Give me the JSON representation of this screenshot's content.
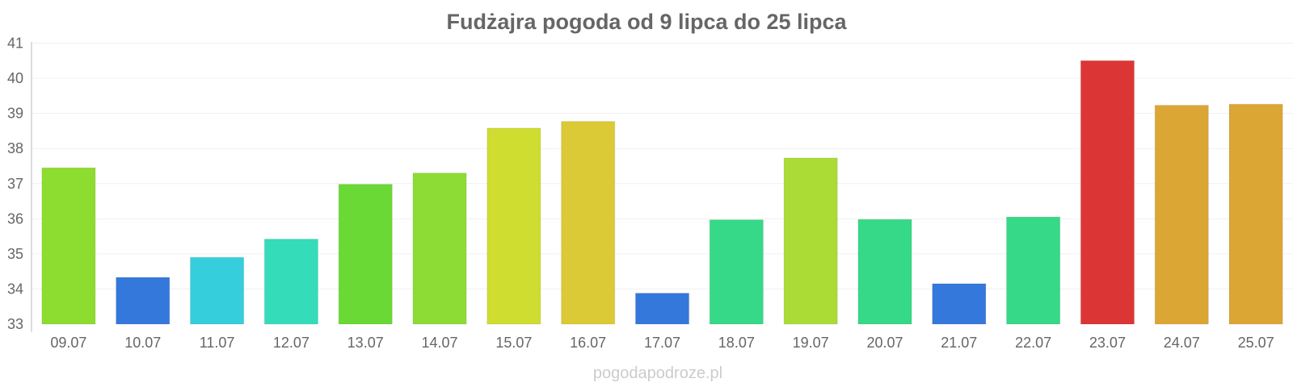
{
  "chart_data": {
    "type": "bar",
    "title": "Fudżajra pogoda od 9 lipca do 25 lipca",
    "xlabel": "",
    "ylabel": "",
    "ylim": [
      33,
      41
    ],
    "yticks": [
      33,
      34,
      35,
      36,
      37,
      38,
      39,
      40,
      41
    ],
    "grid": true,
    "categories": [
      "09.07",
      "10.07",
      "11.07",
      "12.07",
      "13.07",
      "14.07",
      "15.07",
      "16.07",
      "17.07",
      "18.07",
      "19.07",
      "20.07",
      "21.07",
      "22.07",
      "23.07",
      "24.07",
      "25.07"
    ],
    "values": [
      37.45,
      34.33,
      34.9,
      35.42,
      36.98,
      37.3,
      38.58,
      38.77,
      33.88,
      35.97,
      37.73,
      35.98,
      34.15,
      36.05,
      40.5,
      39.23,
      39.26
    ],
    "bar_colors": [
      "#8ddc30",
      "#3578dc",
      "#35cedc",
      "#35dcb9",
      "#6ad935",
      "#8ddc35",
      "#cfdc30",
      "#dbc935",
      "#3578dc",
      "#35d987",
      "#aadc35",
      "#35d987",
      "#3578dc",
      "#35d987",
      "#dc3535",
      "#dca635",
      "#dca635"
    ]
  },
  "watermark": "pogodapodroze.pl"
}
